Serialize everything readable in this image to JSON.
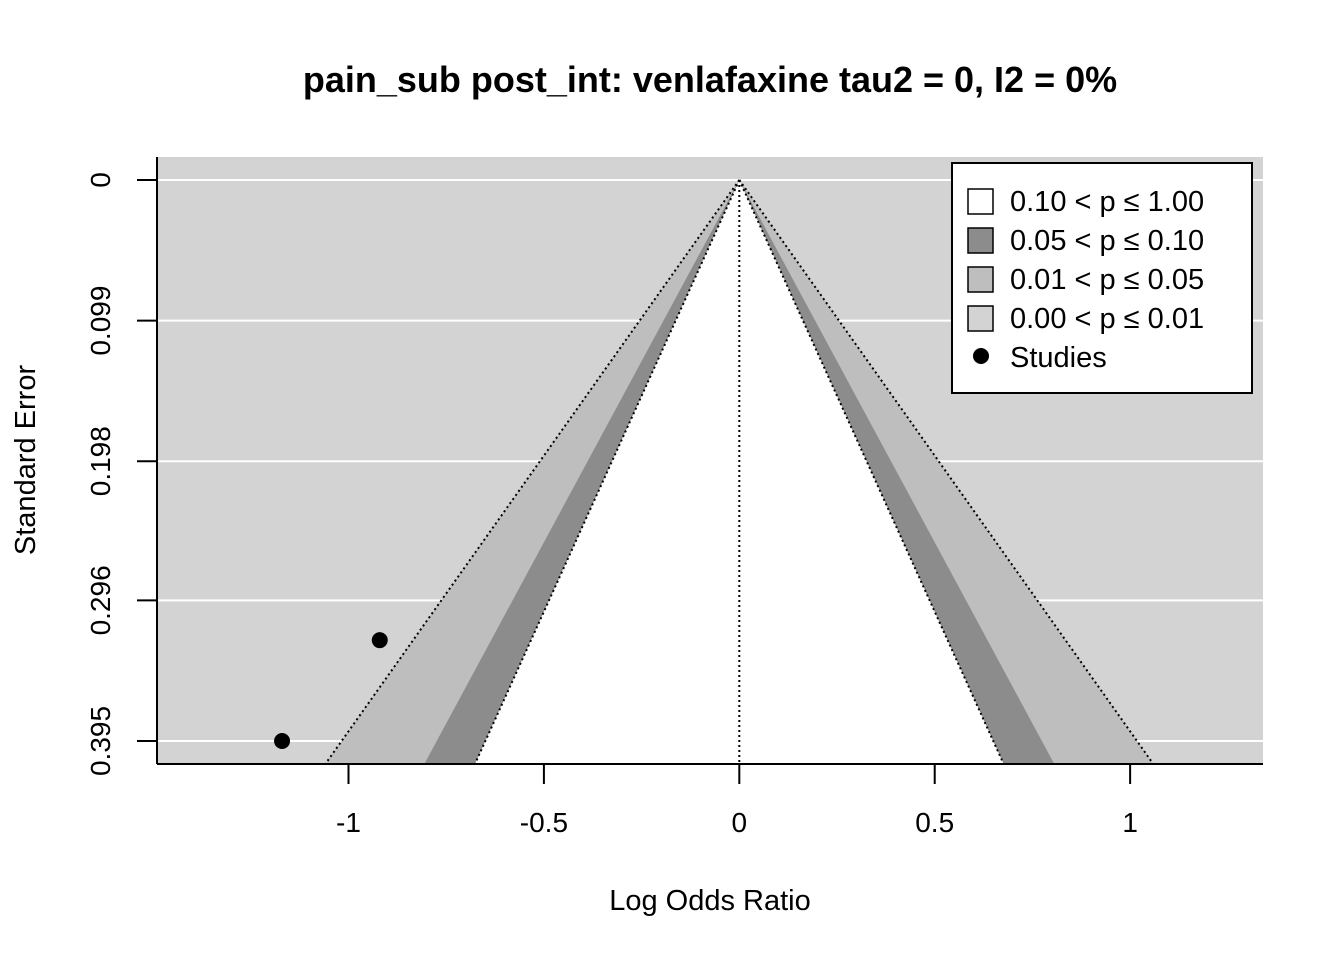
{
  "chart_data": {
    "type": "scatter",
    "subtype": "contour-enhanced funnel plot",
    "title": "pain_sub post_int: venlafaxine tau2 = 0, I2 = 0%",
    "xlabel": "Log Odds Ratio",
    "ylabel": "Standard Error",
    "xlim": [
      -1.49,
      1.34
    ],
    "ylim": [
      0.411,
      0.0
    ],
    "y_reversed": true,
    "x_ticks": [
      -1,
      -0.5,
      0,
      0.5,
      1
    ],
    "x_tick_labels": [
      "-1",
      "-0.5",
      "0",
      "0.5",
      "1"
    ],
    "y_ticks": [
      0,
      0.099,
      0.198,
      0.296,
      0.395
    ],
    "y_tick_labels": [
      "0",
      "0.099",
      "0.198",
      "0.296",
      "0.395"
    ],
    "grid": true,
    "background_color": "#d3d3d3",
    "center": 0,
    "se_max": 0.411,
    "contours": [
      {
        "label": "0.10 < p ≤ 1.00",
        "z": 1.645,
        "color": "#ffffff"
      },
      {
        "label": "0.05 < p ≤ 0.10",
        "z": 1.96,
        "color": "#8c8c8c"
      },
      {
        "label": "0.01 < p ≤ 0.05",
        "z": 2.576,
        "color": "#bebebe"
      },
      {
        "label": "0.00 < p ≤ 0.01",
        "z": null,
        "color": "#d3d3d3"
      }
    ],
    "studies_label": "Studies",
    "series": [
      {
        "name": "Studies",
        "points": [
          {
            "x": -0.92,
            "y": 0.324
          },
          {
            "x": -1.17,
            "y": 0.395
          }
        ]
      }
    ],
    "legend_position": "top-right"
  }
}
